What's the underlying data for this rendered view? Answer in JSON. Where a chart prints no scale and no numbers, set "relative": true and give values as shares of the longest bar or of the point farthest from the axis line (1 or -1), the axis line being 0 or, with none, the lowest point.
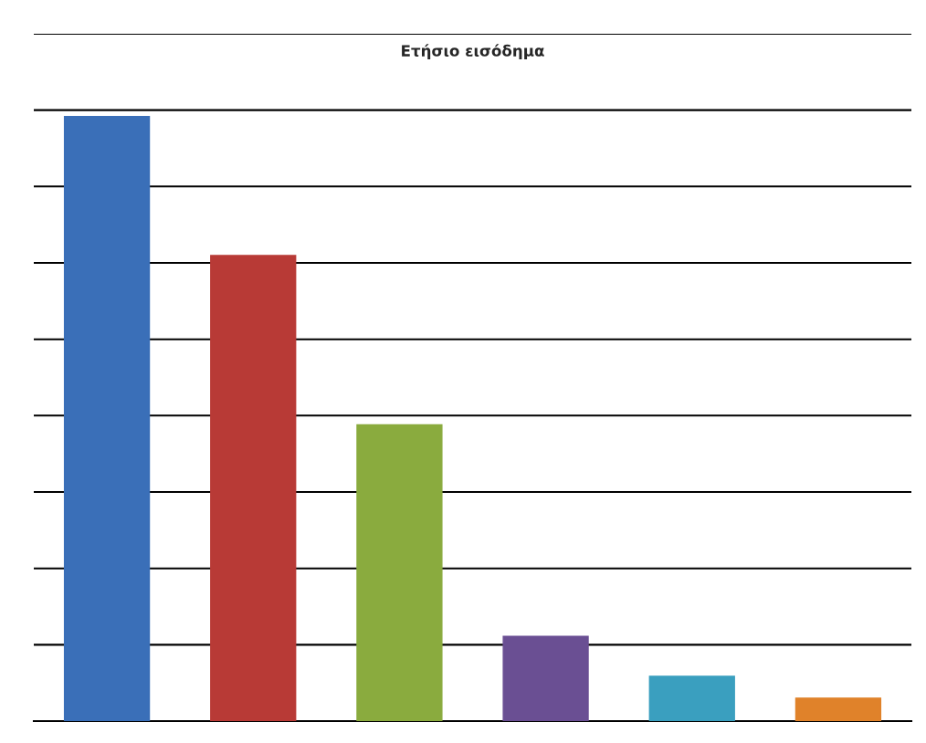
{
  "chart_data": {
    "type": "bar",
    "title": "Ετήσιο εισόδημα",
    "relative": true,
    "categories": [
      null,
      null,
      null,
      null,
      null,
      null
    ],
    "values": [
      1,
      0.77,
      0.49,
      0.14,
      0.074,
      0.038
    ],
    "colors": [
      "#3a6fb8",
      "#b83a36",
      "#8aab3e",
      "#6a4f93",
      "#3a9fbf",
      "#e0822a"
    ],
    "grid": "y"
  }
}
